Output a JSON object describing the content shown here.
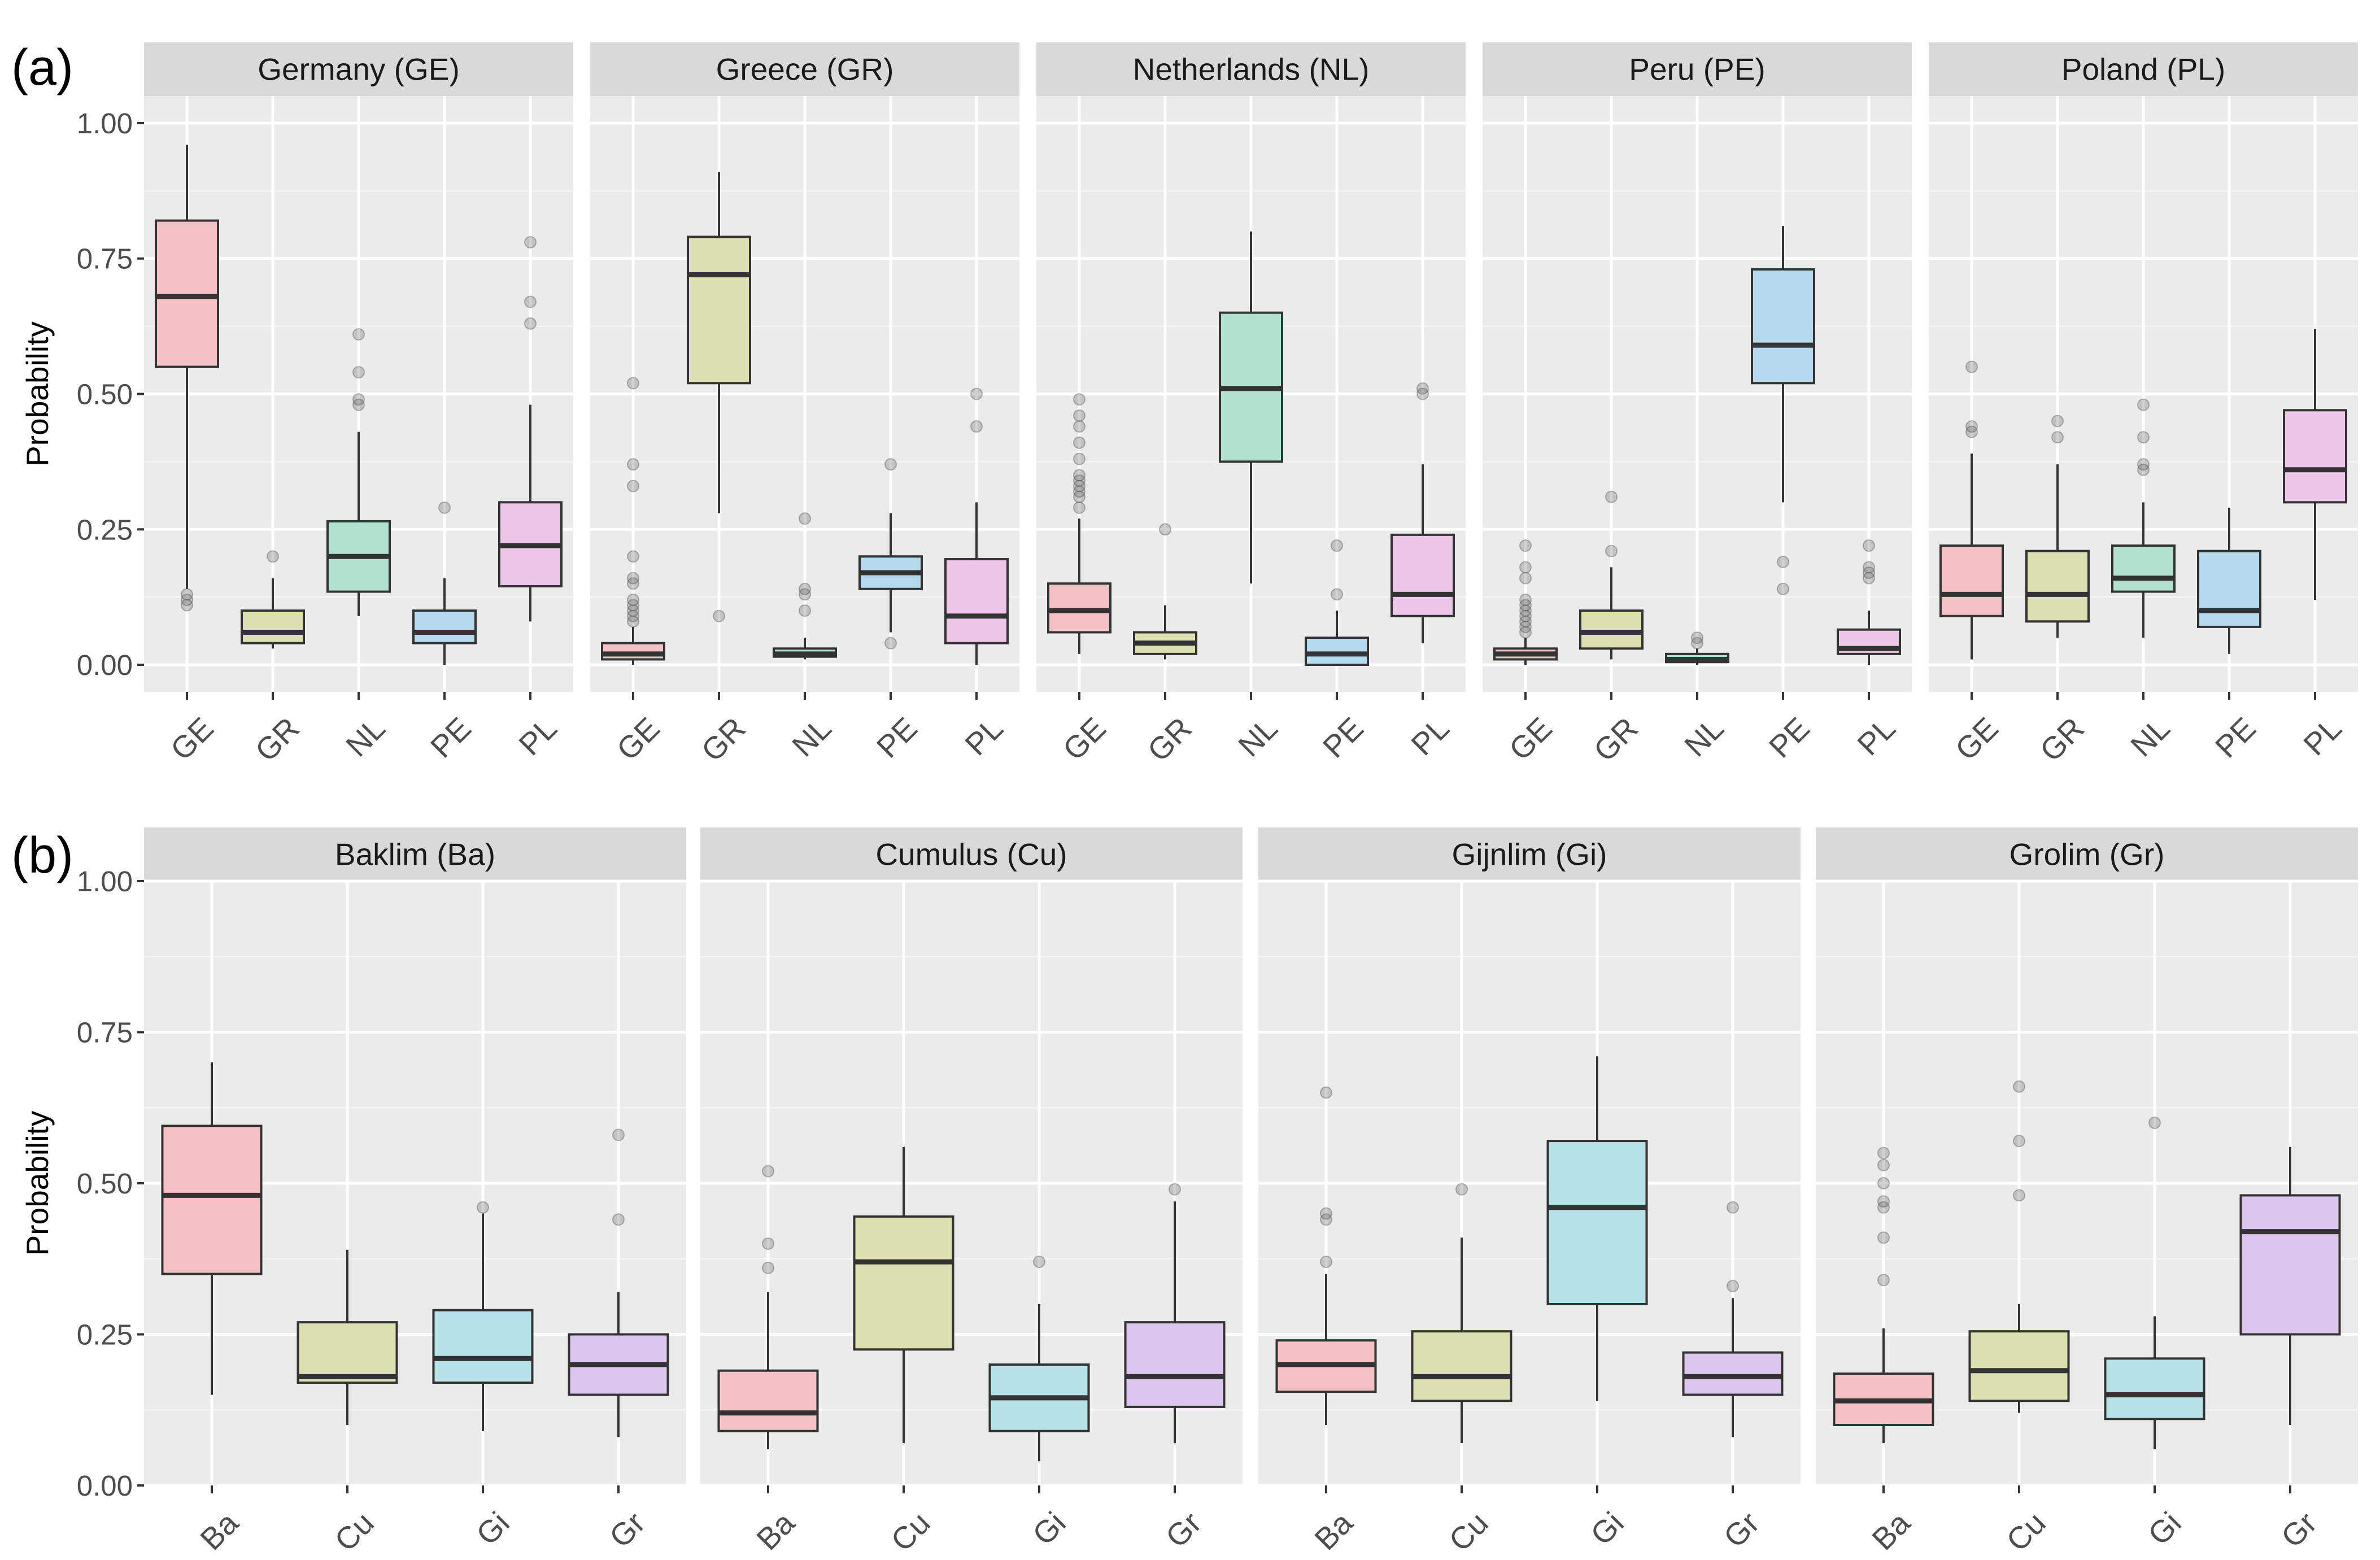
{
  "chart_data": [
    {
      "type": "boxplot",
      "tag": "(a)",
      "ylabel": "Probability",
      "ylim": [
        -0.05,
        1.05
      ],
      "yticks": [
        0.0,
        0.25,
        0.5,
        0.75,
        1.0
      ],
      "ytick_labels": [
        "0.00",
        "0.25",
        "0.50",
        "0.75",
        "1.00"
      ],
      "categories": [
        "GE",
        "GR",
        "NL",
        "PE",
        "PL"
      ],
      "colors": {
        "GE": "#F4C2C6",
        "GR": "#DCE0B0",
        "NL": "#B2E2CF",
        "PE": "#B5DAEE",
        "PL": "#EDC6EA"
      },
      "panels": [
        {
          "title": "Germany (GE)",
          "boxes": [
            {
              "cat": "GE",
              "whislo": 0.14,
              "q1": 0.55,
              "med": 0.68,
              "q3": 0.82,
              "whishi": 0.96,
              "fliers": [
                0.11,
                0.12,
                0.13
              ]
            },
            {
              "cat": "GR",
              "whislo": 0.03,
              "q1": 0.04,
              "med": 0.06,
              "q3": 0.1,
              "whishi": 0.16,
              "fliers": [
                0.2
              ]
            },
            {
              "cat": "NL",
              "whislo": 0.09,
              "q1": 0.135,
              "med": 0.2,
              "q3": 0.265,
              "whishi": 0.43,
              "fliers": [
                0.48,
                0.49,
                0.54,
                0.61
              ]
            },
            {
              "cat": "PE",
              "whislo": 0.0,
              "q1": 0.04,
              "med": 0.06,
              "q3": 0.1,
              "whishi": 0.16,
              "fliers": [
                0.29
              ]
            },
            {
              "cat": "PL",
              "whislo": 0.08,
              "q1": 0.145,
              "med": 0.22,
              "q3": 0.3,
              "whishi": 0.48,
              "fliers": [
                0.63,
                0.67,
                0.78
              ]
            }
          ]
        },
        {
          "title": "Greece (GR)",
          "boxes": [
            {
              "cat": "GE",
              "whislo": 0.0,
              "q1": 0.01,
              "med": 0.02,
              "q3": 0.04,
              "whishi": 0.07,
              "fliers": [
                0.08,
                0.09,
                0.1,
                0.11,
                0.12,
                0.15,
                0.16,
                0.2,
                0.33,
                0.37,
                0.52
              ]
            },
            {
              "cat": "GR",
              "whislo": 0.28,
              "q1": 0.52,
              "med": 0.72,
              "q3": 0.79,
              "whishi": 0.91,
              "fliers": [
                0.09
              ]
            },
            {
              "cat": "NL",
              "whislo": 0.01,
              "q1": 0.015,
              "med": 0.02,
              "q3": 0.03,
              "whishi": 0.05,
              "fliers": [
                0.1,
                0.13,
                0.14,
                0.27
              ]
            },
            {
              "cat": "PE",
              "whislo": 0.06,
              "q1": 0.14,
              "med": 0.17,
              "q3": 0.2,
              "whishi": 0.28,
              "fliers": [
                0.04,
                0.37
              ]
            },
            {
              "cat": "PL",
              "whislo": 0.0,
              "q1": 0.04,
              "med": 0.09,
              "q3": 0.195,
              "whishi": 0.3,
              "fliers": [
                0.44,
                0.5
              ]
            }
          ]
        },
        {
          "title": "Netherlands (NL)",
          "boxes": [
            {
              "cat": "GE",
              "whislo": 0.02,
              "q1": 0.06,
              "med": 0.1,
              "q3": 0.15,
              "whishi": 0.27,
              "fliers": [
                0.29,
                0.31,
                0.32,
                0.33,
                0.34,
                0.35,
                0.38,
                0.41,
                0.44,
                0.46,
                0.49
              ]
            },
            {
              "cat": "GR",
              "whislo": 0.01,
              "q1": 0.02,
              "med": 0.04,
              "q3": 0.06,
              "whishi": 0.11,
              "fliers": [
                0.25
              ]
            },
            {
              "cat": "NL",
              "whislo": 0.15,
              "q1": 0.375,
              "med": 0.51,
              "q3": 0.65,
              "whishi": 0.8,
              "fliers": []
            },
            {
              "cat": "PE",
              "whislo": 0.0,
              "q1": 0.0,
              "med": 0.02,
              "q3": 0.05,
              "whishi": 0.1,
              "fliers": [
                0.13,
                0.22
              ]
            },
            {
              "cat": "PL",
              "whislo": 0.04,
              "q1": 0.09,
              "med": 0.13,
              "q3": 0.24,
              "whishi": 0.37,
              "fliers": [
                0.5,
                0.51
              ]
            }
          ]
        },
        {
          "title": "Peru (PE)",
          "boxes": [
            {
              "cat": "GE",
              "whislo": 0.0,
              "q1": 0.01,
              "med": 0.02,
              "q3": 0.03,
              "whishi": 0.05,
              "fliers": [
                0.06,
                0.07,
                0.08,
                0.09,
                0.1,
                0.11,
                0.12,
                0.16,
                0.18,
                0.22
              ]
            },
            {
              "cat": "GR",
              "whislo": 0.01,
              "q1": 0.03,
              "med": 0.06,
              "q3": 0.1,
              "whishi": 0.18,
              "fliers": [
                0.21,
                0.31
              ]
            },
            {
              "cat": "NL",
              "whislo": 0.0,
              "q1": 0.005,
              "med": 0.01,
              "q3": 0.02,
              "whishi": 0.03,
              "fliers": [
                0.04,
                0.05
              ]
            },
            {
              "cat": "PE",
              "whislo": 0.3,
              "q1": 0.52,
              "med": 0.59,
              "q3": 0.73,
              "whishi": 0.81,
              "fliers": [
                0.14,
                0.19
              ]
            },
            {
              "cat": "PL",
              "whislo": 0.0,
              "q1": 0.02,
              "med": 0.03,
              "q3": 0.065,
              "whishi": 0.1,
              "fliers": [
                0.16,
                0.17,
                0.18,
                0.22
              ]
            }
          ]
        },
        {
          "title": "Poland (PL)",
          "boxes": [
            {
              "cat": "GE",
              "whislo": 0.01,
              "q1": 0.09,
              "med": 0.13,
              "q3": 0.22,
              "whishi": 0.39,
              "fliers": [
                0.43,
                0.44,
                0.55
              ]
            },
            {
              "cat": "GR",
              "whislo": 0.05,
              "q1": 0.08,
              "med": 0.13,
              "q3": 0.21,
              "whishi": 0.37,
              "fliers": [
                0.42,
                0.45
              ]
            },
            {
              "cat": "NL",
              "whislo": 0.05,
              "q1": 0.135,
              "med": 0.16,
              "q3": 0.22,
              "whishi": 0.3,
              "fliers": [
                0.36,
                0.37,
                0.42,
                0.48
              ]
            },
            {
              "cat": "PE",
              "whislo": 0.02,
              "q1": 0.07,
              "med": 0.1,
              "q3": 0.21,
              "whishi": 0.29,
              "fliers": []
            },
            {
              "cat": "PL",
              "whislo": 0.12,
              "q1": 0.3,
              "med": 0.36,
              "q3": 0.47,
              "whishi": 0.62,
              "fliers": []
            }
          ]
        }
      ]
    },
    {
      "type": "boxplot",
      "tag": "(b)",
      "ylabel": "Probability",
      "ylim": [
        0.0,
        1.0
      ],
      "yticks": [
        0.0,
        0.25,
        0.5,
        0.75,
        1.0
      ],
      "ytick_labels": [
        "0.00",
        "0.25",
        "0.50",
        "0.75",
        "1.00"
      ],
      "categories": [
        "Ba",
        "Cu",
        "Gi",
        "Gr"
      ],
      "colors": {
        "Ba": "#F4C2C6",
        "Cu": "#DCE0B0",
        "Gi": "#B6E3E8",
        "Gr": "#DCC6EE"
      },
      "panels": [
        {
          "title": "Baklim (Ba)",
          "boxes": [
            {
              "cat": "Ba",
              "whislo": 0.15,
              "q1": 0.35,
              "med": 0.48,
              "q3": 0.595,
              "whishi": 0.7,
              "fliers": []
            },
            {
              "cat": "Cu",
              "whislo": 0.1,
              "q1": 0.17,
              "med": 0.18,
              "q3": 0.27,
              "whishi": 0.39,
              "fliers": []
            },
            {
              "cat": "Gi",
              "whislo": 0.09,
              "q1": 0.17,
              "med": 0.21,
              "q3": 0.29,
              "whishi": 0.45,
              "fliers": [
                0.46
              ]
            },
            {
              "cat": "Gr",
              "whislo": 0.08,
              "q1": 0.15,
              "med": 0.2,
              "q3": 0.25,
              "whishi": 0.32,
              "fliers": [
                0.44,
                0.58
              ]
            }
          ]
        },
        {
          "title": "Cumulus (Cu)",
          "boxes": [
            {
              "cat": "Ba",
              "whislo": 0.06,
              "q1": 0.09,
              "med": 0.12,
              "q3": 0.19,
              "whishi": 0.32,
              "fliers": [
                0.36,
                0.4,
                0.52
              ]
            },
            {
              "cat": "Cu",
              "whislo": 0.07,
              "q1": 0.225,
              "med": 0.37,
              "q3": 0.445,
              "whishi": 0.56,
              "fliers": []
            },
            {
              "cat": "Gi",
              "whislo": 0.04,
              "q1": 0.09,
              "med": 0.145,
              "q3": 0.2,
              "whishi": 0.3,
              "fliers": [
                0.37
              ]
            },
            {
              "cat": "Gr",
              "whislo": 0.07,
              "q1": 0.13,
              "med": 0.18,
              "q3": 0.27,
              "whishi": 0.47,
              "fliers": [
                0.49
              ]
            }
          ]
        },
        {
          "title": "Gijnlim (Gi)",
          "boxes": [
            {
              "cat": "Ba",
              "whislo": 0.1,
              "q1": 0.155,
              "med": 0.2,
              "q3": 0.24,
              "whishi": 0.35,
              "fliers": [
                0.37,
                0.44,
                0.45,
                0.65
              ]
            },
            {
              "cat": "Cu",
              "whislo": 0.07,
              "q1": 0.14,
              "med": 0.18,
              "q3": 0.255,
              "whishi": 0.41,
              "fliers": [
                0.49
              ]
            },
            {
              "cat": "Gi",
              "whislo": 0.14,
              "q1": 0.3,
              "med": 0.46,
              "q3": 0.57,
              "whishi": 0.71,
              "fliers": []
            },
            {
              "cat": "Gr",
              "whislo": 0.08,
              "q1": 0.15,
              "med": 0.18,
              "q3": 0.22,
              "whishi": 0.31,
              "fliers": [
                0.33,
                0.46
              ]
            }
          ]
        },
        {
          "title": "Grolim (Gr)",
          "boxes": [
            {
              "cat": "Ba",
              "whislo": 0.07,
              "q1": 0.1,
              "med": 0.14,
              "q3": 0.185,
              "whishi": 0.26,
              "fliers": [
                0.34,
                0.41,
                0.46,
                0.47,
                0.5,
                0.53,
                0.55
              ]
            },
            {
              "cat": "Cu",
              "whislo": 0.12,
              "q1": 0.14,
              "med": 0.19,
              "q3": 0.255,
              "whishi": 0.3,
              "fliers": [
                0.48,
                0.57,
                0.66
              ]
            },
            {
              "cat": "Gi",
              "whislo": 0.06,
              "q1": 0.11,
              "med": 0.15,
              "q3": 0.21,
              "whishi": 0.28,
              "fliers": [
                0.6
              ]
            },
            {
              "cat": "Gr",
              "whislo": 0.1,
              "q1": 0.25,
              "med": 0.42,
              "q3": 0.48,
              "whishi": 0.56,
              "fliers": []
            }
          ]
        }
      ]
    }
  ]
}
